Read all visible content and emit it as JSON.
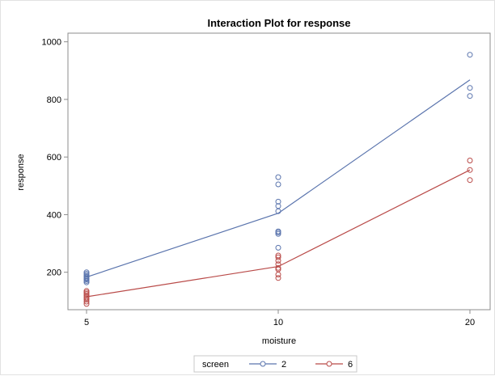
{
  "chart_data": {
    "type": "line",
    "title": "Interaction Plot for response",
    "xlabel": "moisture",
    "ylabel": "response",
    "x_ticks": [
      5,
      10,
      20
    ],
    "y_ticks": [
      200,
      400,
      600,
      800,
      1000
    ],
    "ylim": [
      70,
      1030
    ],
    "grid": false,
    "legend": {
      "title": "screen",
      "placement": "bottom"
    },
    "series": [
      {
        "name": "2",
        "color": "#5a74ad",
        "means": [
          [
            5,
            183
          ],
          [
            10,
            405
          ],
          [
            20,
            868
          ]
        ],
        "points": [
          [
            5,
            165
          ],
          [
            5,
            170
          ],
          [
            5,
            175
          ],
          [
            5,
            178
          ],
          [
            5,
            182
          ],
          [
            5,
            186
          ],
          [
            5,
            190
          ],
          [
            5,
            195
          ],
          [
            5,
            200
          ],
          [
            10,
            285
          ],
          [
            10,
            333
          ],
          [
            10,
            338
          ],
          [
            10,
            342
          ],
          [
            10,
            412
          ],
          [
            10,
            430
          ],
          [
            10,
            445
          ],
          [
            10,
            505
          ],
          [
            10,
            530
          ],
          [
            20,
            812
          ],
          [
            20,
            840
          ],
          [
            20,
            955
          ]
        ]
      },
      {
        "name": "6",
        "color": "#b94a48",
        "means": [
          [
            5,
            115
          ],
          [
            10,
            220
          ],
          [
            20,
            555
          ]
        ],
        "points": [
          [
            5,
            90
          ],
          [
            5,
            98
          ],
          [
            5,
            105
          ],
          [
            5,
            110
          ],
          [
            5,
            115
          ],
          [
            5,
            120
          ],
          [
            5,
            125
          ],
          [
            5,
            130
          ],
          [
            5,
            135
          ],
          [
            10,
            180
          ],
          [
            10,
            192
          ],
          [
            10,
            210
          ],
          [
            10,
            215
          ],
          [
            10,
            228
          ],
          [
            10,
            240
          ],
          [
            10,
            252
          ],
          [
            10,
            258
          ],
          [
            20,
            520
          ],
          [
            20,
            555
          ],
          [
            20,
            588
          ]
        ]
      }
    ]
  }
}
